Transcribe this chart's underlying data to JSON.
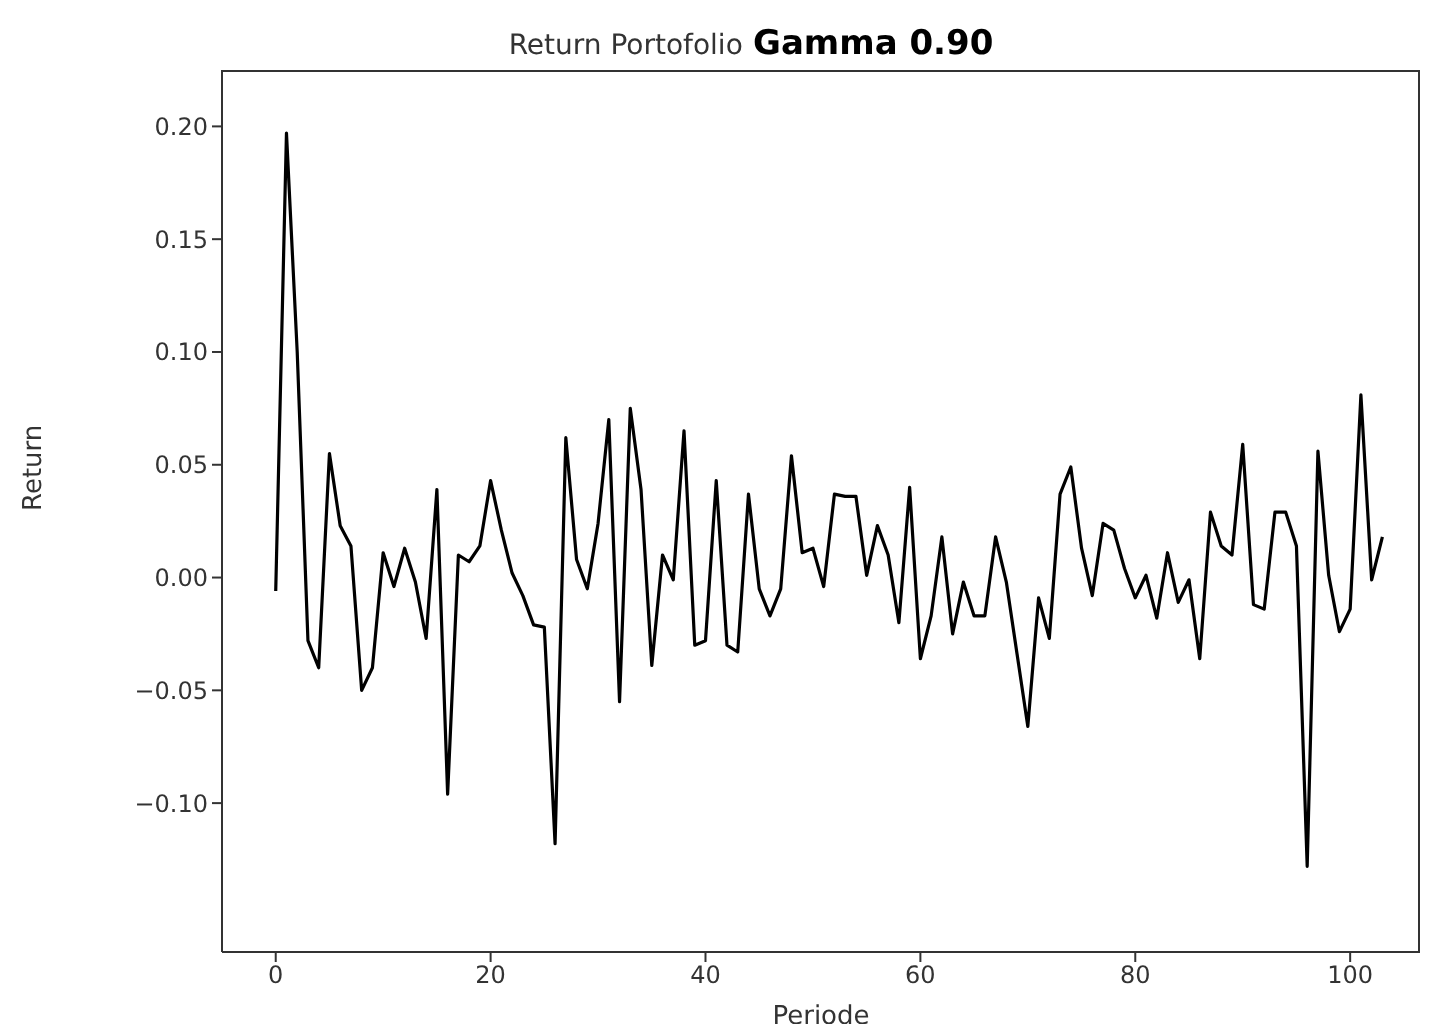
{
  "chart_data": {
    "type": "line",
    "title": "Return Portofolio",
    "subtitle": "Gamma 0.90",
    "xlabel": "Periode",
    "ylabel": "Return",
    "x": [
      0,
      1,
      2,
      3,
      4,
      5,
      6,
      7,
      8,
      9,
      10,
      11,
      12,
      13,
      14,
      15,
      16,
      17,
      18,
      19,
      20,
      21,
      22,
      23,
      24,
      25,
      26,
      27,
      28,
      29,
      30,
      31,
      32,
      33,
      34,
      35,
      36,
      37,
      38,
      39,
      40,
      41,
      42,
      43,
      44,
      45,
      46,
      47,
      48,
      49,
      50,
      51,
      52,
      53,
      54,
      55,
      56,
      57,
      58,
      59,
      60,
      61,
      62,
      63,
      64,
      65,
      66,
      67,
      68,
      69,
      70,
      71,
      72,
      73,
      74,
      75,
      76,
      77,
      78,
      79,
      80,
      81,
      82,
      83,
      84,
      85,
      86,
      87,
      88,
      89,
      90,
      91,
      92,
      93,
      94,
      95,
      96,
      97,
      98,
      99,
      100,
      101,
      102,
      103
    ],
    "series": [
      {
        "color": "#000000",
        "values": [
          -0.006,
          0.197,
          0.1,
          -0.028,
          -0.04,
          0.055,
          0.023,
          0.014,
          -0.05,
          -0.04,
          0.011,
          -0.004,
          0.013,
          -0.002,
          -0.027,
          0.039,
          -0.096,
          0.01,
          0.007,
          0.014,
          0.043,
          0.021,
          0.002,
          -0.008,
          -0.021,
          -0.022,
          -0.118,
          0.062,
          0.008,
          -0.005,
          0.024,
          0.07,
          -0.055,
          0.075,
          0.039,
          -0.039,
          0.01,
          -0.001,
          0.065,
          -0.03,
          -0.028,
          0.043,
          -0.03,
          -0.033,
          0.037,
          -0.005,
          -0.017,
          -0.005,
          0.054,
          0.011,
          0.013,
          -0.004,
          0.037,
          0.036,
          0.036,
          0.001,
          0.023,
          0.01,
          -0.02,
          0.04,
          -0.036,
          -0.017,
          0.018,
          -0.025,
          -0.002,
          -0.017,
          -0.017,
          0.018,
          -0.002,
          -0.034,
          -0.066,
          -0.009,
          -0.027,
          0.037,
          0.049,
          0.013,
          -0.008,
          0.024,
          0.021,
          0.004,
          -0.009,
          0.001,
          -0.018,
          0.011,
          -0.011,
          -0.001,
          -0.036,
          0.029,
          0.014,
          0.01,
          0.059,
          -0.012,
          -0.014,
          0.029,
          0.029,
          0.014,
          -0.128,
          0.056,
          0.001,
          -0.024,
          -0.014,
          0.081,
          -0.001,
          0.018
        ]
      }
    ],
    "xlim": [
      -5,
      106.5
    ],
    "xticks": [
      0,
      20,
      40,
      60,
      80,
      100
    ],
    "ylim": [
      -0.166,
      0.225
    ],
    "yticks": [
      {
        "value": -0.1,
        "label": "−0.10"
      },
      {
        "value": -0.05,
        "label": "−0.05"
      },
      {
        "value": 0,
        "label": "0.00"
      },
      {
        "value": 0.05,
        "label": "0.05"
      },
      {
        "value": 0.1,
        "label": "0.10"
      },
      {
        "value": 0.15,
        "label": "0.15"
      },
      {
        "value": 0.2,
        "label": "0.20"
      }
    ],
    "grid": false,
    "legend": false,
    "marker": "none",
    "line_style": "solid"
  }
}
